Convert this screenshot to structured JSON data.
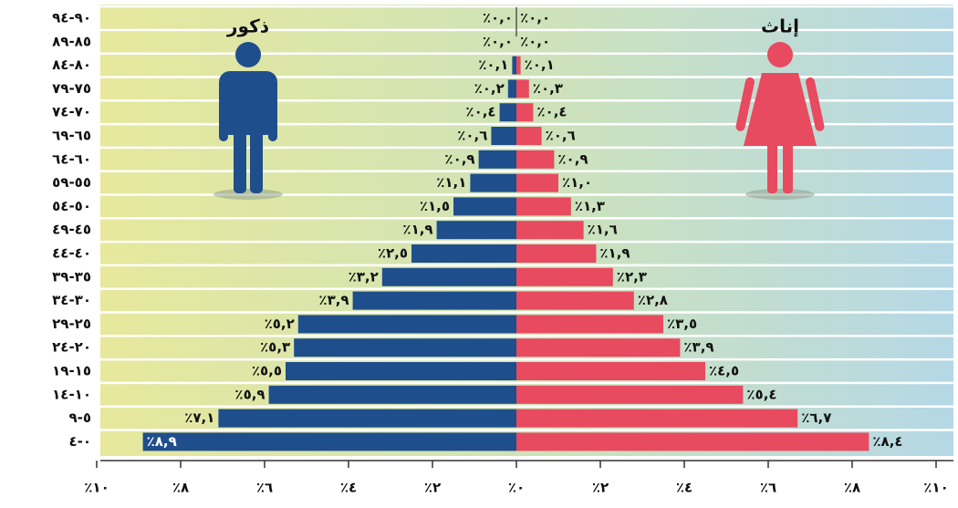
{
  "chart_data": {
    "type": "pyramid",
    "categories": [
      "٩٤-٩٠",
      "٨٩-٨٥",
      "٨٤-٨٠",
      "٧٩-٧٥",
      "٧٤-٧٠",
      "٦٩-٦٥",
      "٦٤-٦٠",
      "٥٩-٥٥",
      "٥٤-٥٠",
      "٤٩-٤٥",
      "٤٤-٤٠",
      "٣٩-٣٥",
      "٣٤-٣٠",
      "٢٩-٢٥",
      "٢٤-٢٠",
      "١٩-١٥",
      "١٤-١٠",
      "٩-٥",
      "٤-٠"
    ],
    "series": [
      {
        "name": "ذكور",
        "side": "left",
        "color": "#1f4e8c",
        "values": [
          0.0,
          0.0,
          0.1,
          0.2,
          0.4,
          0.6,
          0.9,
          1.1,
          1.5,
          1.9,
          2.5,
          3.2,
          3.9,
          5.2,
          5.3,
          5.5,
          5.9,
          7.1,
          8.9
        ],
        "value_labels": [
          "٪٠,٠",
          "٪٠,٠",
          "٪٠,١",
          "٪٠,٢",
          "٪٠,٤",
          "٪٠,٦",
          "٪٠,٩",
          "٪١,١",
          "٪١,٥",
          "٪١,٩",
          "٪٢,٥",
          "٪٣,٢",
          "٪٣,٩",
          "٪٥,٢",
          "٪٥,٣",
          "٪٥,٥",
          "٪٥,٩",
          "٪٧,١",
          "٪٨,٩"
        ]
      },
      {
        "name": "إناث",
        "side": "right",
        "color": "#e84a5f",
        "values": [
          0.0,
          0.0,
          0.1,
          0.3,
          0.4,
          0.6,
          0.9,
          1.0,
          1.3,
          1.6,
          1.9,
          2.3,
          2.8,
          3.5,
          3.9,
          4.5,
          5.4,
          6.7,
          8.4
        ],
        "value_labels": [
          "٪٠,٠",
          "٪٠,٠",
          "٪٠,١",
          "٪٠,٣",
          "٪٠,٤",
          "٪٠,٦",
          "٪٠,٩",
          "٪١,٠",
          "٪١,٣",
          "٪١,٦",
          "٪١,٩",
          "٪٢,٣",
          "٪٢,٨",
          "٪٣,٥",
          "٪٣,٩",
          "٪٤,٥",
          "٪٥,٤",
          "٪٦,٧",
          "٪٨,٤"
        ]
      }
    ],
    "xlim": [
      0,
      10
    ],
    "xticks_left": [
      {
        "value": 10,
        "label": "٪١٠"
      },
      {
        "value": 8,
        "label": "٪٨"
      },
      {
        "value": 6,
        "label": "٪٦"
      },
      {
        "value": 4,
        "label": "٪٤"
      },
      {
        "value": 2,
        "label": "٪٢"
      }
    ],
    "xticks_right": [
      {
        "value": 0,
        "label": "٪٠"
      },
      {
        "value": 2,
        "label": "٪٢"
      },
      {
        "value": 4,
        "label": "٪٤"
      },
      {
        "value": 6,
        "label": "٪٦"
      },
      {
        "value": 8,
        "label": "٪٨"
      },
      {
        "value": 10,
        "label": "٪١٠"
      }
    ]
  }
}
